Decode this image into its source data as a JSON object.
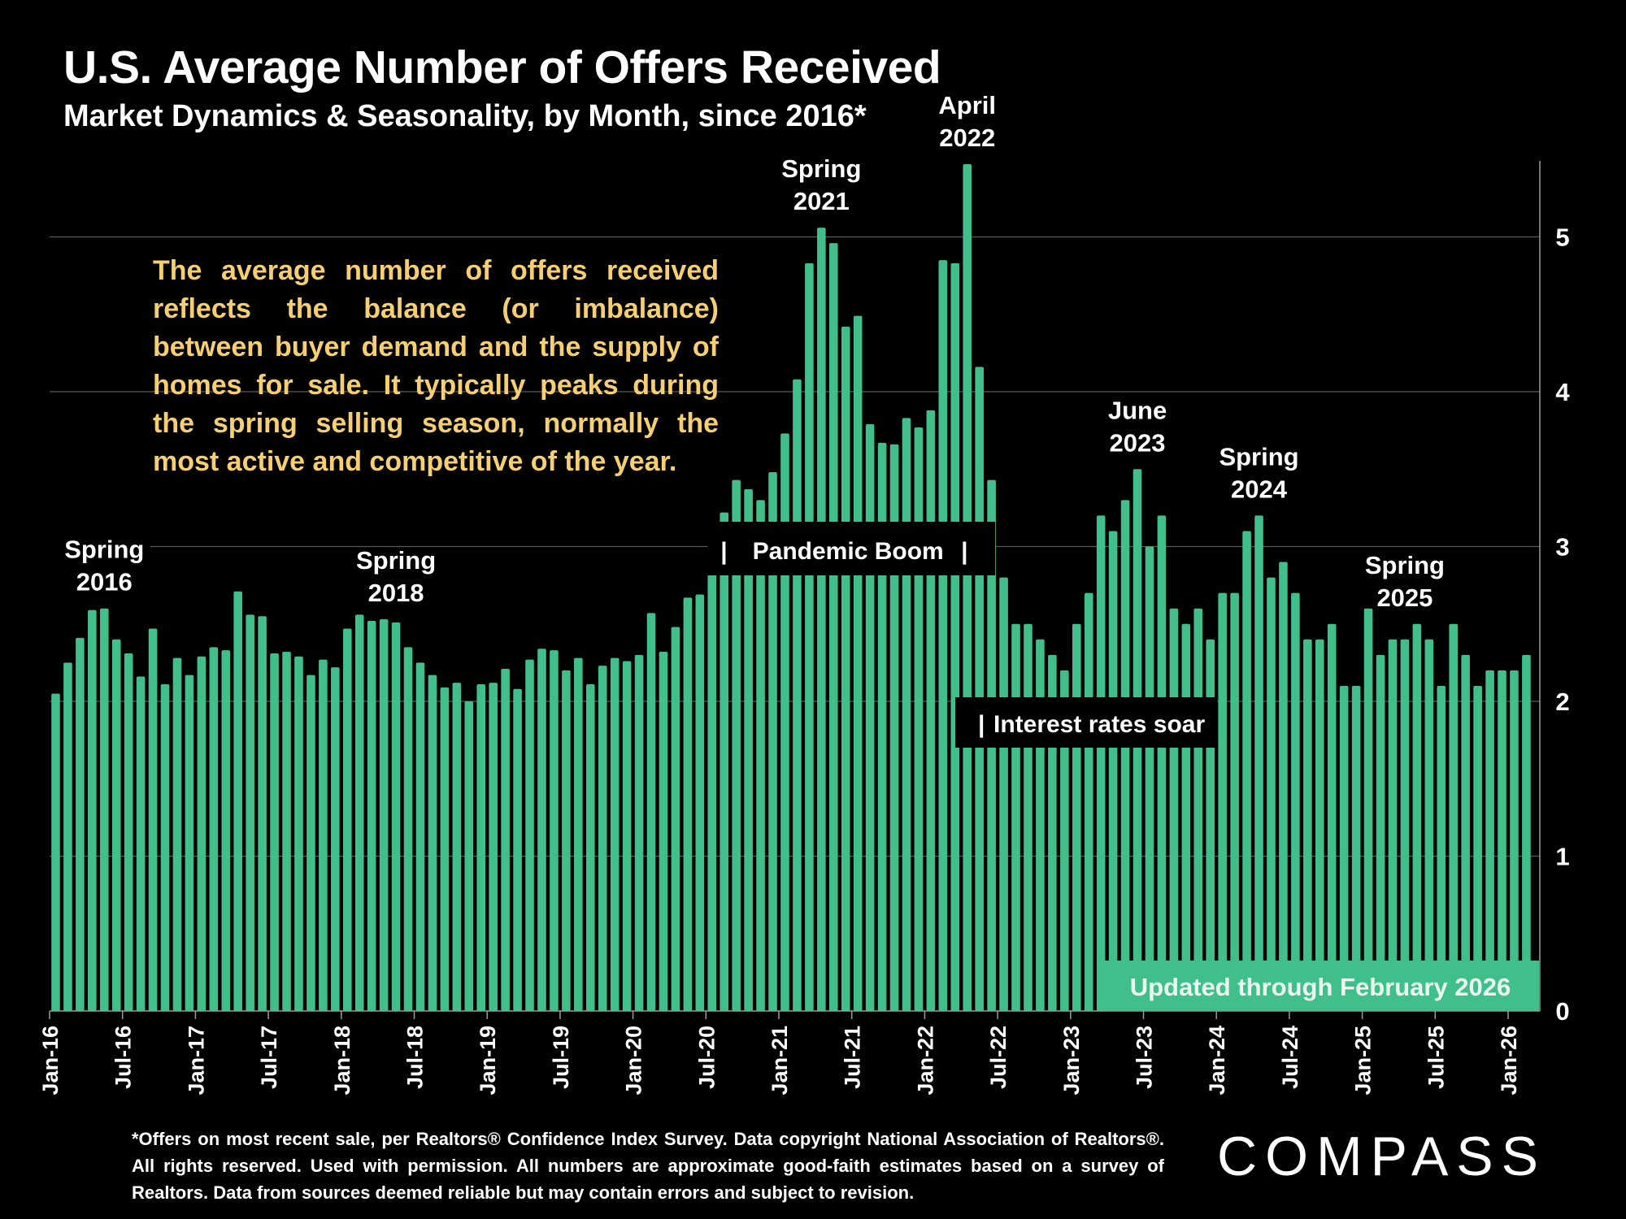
{
  "header": {
    "title": "U.S. Average Number of Offers Received",
    "subtitle": "Market Dynamics & Seasonality, by Month, since 2016*"
  },
  "blurb": "The average number of offers received reflects the balance (or imbalance) between buyer demand and the supply of homes for sale. It typically peaks during the spring selling season, normally the most active and competitive of the year.",
  "footnote": "*Offers on most recent sale, per Realtors® Confidence Index Survey. Data copyright National Association of Realtors®. All rights reserved. Used with permission. All numbers are approximate good-faith estimates based on a survey of Realtors. Data from sources deemed reliable but may contain errors and subject to revision.",
  "logo": "COMPASS",
  "colors": {
    "bar": "#41bf8a",
    "blurb_text": "#f6cf73",
    "background": "#000000"
  },
  "chart_data": {
    "type": "bar",
    "title": "U.S. Average Number of Offers Received",
    "subtitle": "Market Dynamics & Seasonality, by Month, since 2016*",
    "xlabel": "",
    "ylabel": "",
    "ylim": [
      0,
      5.5
    ],
    "yticks": [
      "0",
      "1",
      "2",
      "3",
      "4",
      "5"
    ],
    "y_axis_side": "right",
    "grid": true,
    "start_month": "Jan-16",
    "xtick_labels": [
      "Jan-16",
      "Jul-16",
      "Jan-17",
      "Jul-17",
      "Jan-18",
      "Jul-18",
      "Jan-19",
      "Jul-19",
      "Jan-20",
      "Jul-20",
      "Jan-21",
      "Jul-21",
      "Jan-22",
      "Jul-22",
      "Jan-23",
      "Jul-23",
      "Jan-24",
      "Jul-24",
      "Jan-25",
      "Jul-25",
      "Jan-26"
    ],
    "values": [
      2.05,
      2.25,
      2.41,
      2.59,
      2.6,
      2.4,
      2.31,
      2.16,
      2.47,
      2.11,
      2.28,
      2.17,
      2.29,
      2.35,
      2.33,
      2.71,
      2.56,
      2.55,
      2.31,
      2.32,
      2.29,
      2.17,
      2.27,
      2.22,
      2.47,
      2.56,
      2.52,
      2.53,
      2.51,
      2.35,
      2.25,
      2.17,
      2.09,
      2.12,
      2.0,
      2.11,
      2.12,
      2.21,
      2.08,
      2.27,
      2.34,
      2.33,
      2.2,
      2.28,
      2.11,
      2.23,
      2.28,
      2.26,
      2.3,
      2.57,
      2.32,
      2.48,
      2.67,
      2.69,
      3.0,
      3.22,
      3.43,
      3.37,
      3.3,
      3.48,
      3.73,
      4.08,
      4.83,
      5.06,
      4.96,
      4.42,
      4.49,
      3.79,
      3.67,
      3.66,
      3.83,
      3.77,
      3.88,
      4.85,
      4.83,
      5.47,
      4.16,
      3.43,
      2.8,
      2.5,
      2.5,
      2.4,
      2.3,
      2.2,
      2.5,
      2.7,
      3.2,
      3.1,
      3.3,
      3.5,
      3.0,
      3.2,
      2.6,
      2.5,
      2.6,
      2.4,
      2.7,
      2.7,
      3.1,
      3.2,
      2.8,
      2.9,
      2.7,
      2.4,
      2.4,
      2.5,
      2.1,
      2.1,
      2.6,
      2.3,
      2.4,
      2.4,
      2.5,
      2.4,
      2.1,
      2.5,
      2.3,
      2.1,
      2.2,
      2.2,
      2.2,
      2.3
    ],
    "annotations": [
      {
        "label": [
          "Spring",
          "2016"
        ],
        "month_index": 4
      },
      {
        "label": [
          "Spring",
          "2018"
        ],
        "month_index": 28
      },
      {
        "label": [
          "Spring",
          "2021"
        ],
        "month_index": 63
      },
      {
        "label": [
          "April",
          "2022"
        ],
        "month_index": 75
      },
      {
        "label": [
          "June",
          "2023"
        ],
        "month_index": 89
      },
      {
        "label": [
          "Spring",
          "2024"
        ],
        "month_index": 99
      },
      {
        "label": [
          "Spring",
          "2025"
        ],
        "month_index": 111
      }
    ],
    "callouts": {
      "pandemic": {
        "label": "Pandemic Boom",
        "from_index": 54,
        "to_index": 78
      },
      "rates": {
        "label": "Interest rates soar"
      },
      "updated": {
        "label": "Updated through February 2026"
      }
    }
  }
}
